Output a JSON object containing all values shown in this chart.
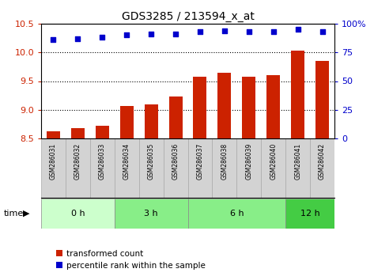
{
  "title": "GDS3285 / 213594_x_at",
  "samples": [
    "GSM286031",
    "GSM286032",
    "GSM286033",
    "GSM286034",
    "GSM286035",
    "GSM286036",
    "GSM286037",
    "GSM286038",
    "GSM286039",
    "GSM286040",
    "GSM286041",
    "GSM286042"
  ],
  "bar_values": [
    8.62,
    8.68,
    8.72,
    9.07,
    9.1,
    9.23,
    9.57,
    9.65,
    9.57,
    9.6,
    10.03,
    9.85
  ],
  "percentile_values": [
    86,
    87,
    88,
    90,
    91,
    91,
    93,
    94,
    93,
    93,
    95,
    93
  ],
  "ylim_left": [
    8.5,
    10.5
  ],
  "ylim_right": [
    0,
    100
  ],
  "yticks_left": [
    8.5,
    9.0,
    9.5,
    10.0,
    10.5
  ],
  "yticks_right": [
    0,
    25,
    50,
    75,
    100
  ],
  "bar_color": "#cc2200",
  "scatter_color": "#0000cc",
  "dotted_lines": [
    9.0,
    9.5,
    10.0
  ],
  "group_ranges": [
    [
      0,
      2,
      "0 h",
      "#ccffcc"
    ],
    [
      3,
      5,
      "3 h",
      "#88ee88"
    ],
    [
      6,
      9,
      "6 h",
      "#88ee88"
    ],
    [
      10,
      11,
      "12 h",
      "#44cc44"
    ]
  ],
  "legend_bar_label": "transformed count",
  "legend_scatter_label": "percentile rank within the sample",
  "fig_width": 4.73,
  "fig_height": 3.54
}
